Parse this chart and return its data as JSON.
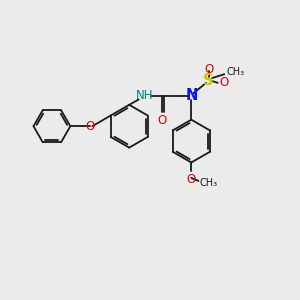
{
  "bg_color": "#ebebeb",
  "bond_color": "#1a1a1a",
  "N_color": "#1010ee",
  "O_color": "#dd0000",
  "S_color": "#c8c800",
  "NH_color": "#008080",
  "figsize": [
    3.0,
    3.0
  ],
  "dpi": 100,
  "lw": 1.3,
  "fs": 8.5,
  "fs_small": 7.0,
  "xlim": [
    0,
    10
  ],
  "ylim": [
    0,
    10
  ]
}
